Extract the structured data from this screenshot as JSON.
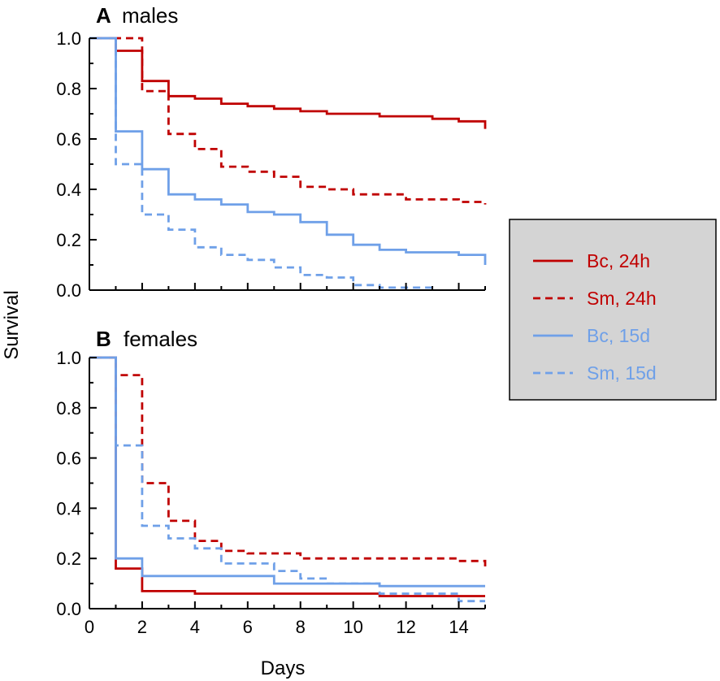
{
  "chart_data": [
    {
      "type": "line",
      "panel_letter": "A",
      "title": "males",
      "xlabel": "",
      "ylabel": "Survival",
      "xlim": [
        0,
        15
      ],
      "ylim": [
        0,
        1.0
      ],
      "yticks": [
        "0.0",
        "0.2",
        "0.4",
        "0.6",
        "0.8",
        "1.0"
      ],
      "series": [
        {
          "name": "Bc, 24h",
          "color": "#c00000",
          "dash": "solid",
          "x": [
            0,
            1,
            2,
            3,
            4,
            5,
            6,
            7,
            8,
            9,
            10,
            11,
            12,
            13,
            14,
            15
          ],
          "y": [
            1.0,
            0.95,
            0.83,
            0.77,
            0.76,
            0.74,
            0.73,
            0.72,
            0.71,
            0.7,
            0.7,
            0.69,
            0.69,
            0.68,
            0.67,
            0.64
          ]
        },
        {
          "name": "Sm, 24h",
          "color": "#c00000",
          "dash": "dashed",
          "x": [
            0,
            1,
            2,
            3,
            4,
            5,
            6,
            7,
            8,
            9,
            10,
            11,
            12,
            13,
            14,
            15
          ],
          "y": [
            1.0,
            1.0,
            0.79,
            0.62,
            0.56,
            0.49,
            0.47,
            0.45,
            0.41,
            0.4,
            0.38,
            0.38,
            0.36,
            0.36,
            0.35,
            0.34
          ]
        },
        {
          "name": "Bc, 15d",
          "color": "#6fa0e8",
          "dash": "solid",
          "x": [
            0,
            1,
            2,
            3,
            4,
            5,
            6,
            7,
            8,
            9,
            10,
            11,
            12,
            13,
            14,
            15
          ],
          "y": [
            1.0,
            0.63,
            0.48,
            0.38,
            0.36,
            0.34,
            0.31,
            0.3,
            0.27,
            0.22,
            0.18,
            0.16,
            0.15,
            0.15,
            0.14,
            0.1
          ]
        },
        {
          "name": "Sm, 15d",
          "color": "#6fa0e8",
          "dash": "dashed",
          "x": [
            0,
            1,
            2,
            3,
            4,
            5,
            6,
            7,
            8,
            9,
            10,
            11,
            12,
            13
          ],
          "y": [
            1.0,
            0.5,
            0.3,
            0.24,
            0.17,
            0.14,
            0.12,
            0.09,
            0.06,
            0.05,
            0.02,
            0.01,
            0.01,
            0.0
          ]
        }
      ]
    },
    {
      "type": "line",
      "panel_letter": "B",
      "title": "females",
      "xlabel": "Days",
      "ylabel": "Survival",
      "xlim": [
        0,
        15
      ],
      "ylim": [
        0,
        1.0
      ],
      "xticks": [
        "0",
        "2",
        "4",
        "6",
        "8",
        "10",
        "12",
        "14"
      ],
      "yticks": [
        "0.0",
        "0.2",
        "0.4",
        "0.6",
        "0.8",
        "1.0"
      ],
      "series": [
        {
          "name": "Bc, 24h",
          "color": "#c00000",
          "dash": "solid",
          "x": [
            0,
            1,
            2,
            4,
            11,
            15
          ],
          "y": [
            1.0,
            0.16,
            0.07,
            0.06,
            0.05,
            0.05
          ]
        },
        {
          "name": "Sm, 24h",
          "color": "#c00000",
          "dash": "dashed",
          "x": [
            0,
            1,
            2,
            3,
            4,
            5,
            6,
            8,
            14,
            15
          ],
          "y": [
            1.0,
            0.93,
            0.5,
            0.35,
            0.27,
            0.23,
            0.22,
            0.2,
            0.19,
            0.15
          ]
        },
        {
          "name": "Bc, 15d",
          "color": "#6fa0e8",
          "dash": "solid",
          "x": [
            0,
            1,
            2,
            7,
            11,
            15
          ],
          "y": [
            1.0,
            0.2,
            0.13,
            0.1,
            0.09,
            0.09
          ]
        },
        {
          "name": "Sm, 15d",
          "color": "#6fa0e8",
          "dash": "dashed",
          "x": [
            0,
            1,
            2,
            3,
            4,
            5,
            7,
            8,
            9,
            11,
            14,
            15
          ],
          "y": [
            1.0,
            0.65,
            0.33,
            0.28,
            0.24,
            0.18,
            0.15,
            0.12,
            0.1,
            0.06,
            0.03,
            0.03
          ]
        }
      ]
    }
  ],
  "legend": {
    "placement": "right",
    "background": "#d4d4d4",
    "entries": [
      {
        "label": "Bc, 24h",
        "color": "#c00000",
        "dash": "solid"
      },
      {
        "label": "Sm, 24h",
        "color": "#c00000",
        "dash": "dashed"
      },
      {
        "label": "Bc, 15d",
        "color": "#6fa0e8",
        "dash": "solid"
      },
      {
        "label": "Sm, 15d",
        "color": "#6fa0e8",
        "dash": "dashed"
      }
    ]
  }
}
